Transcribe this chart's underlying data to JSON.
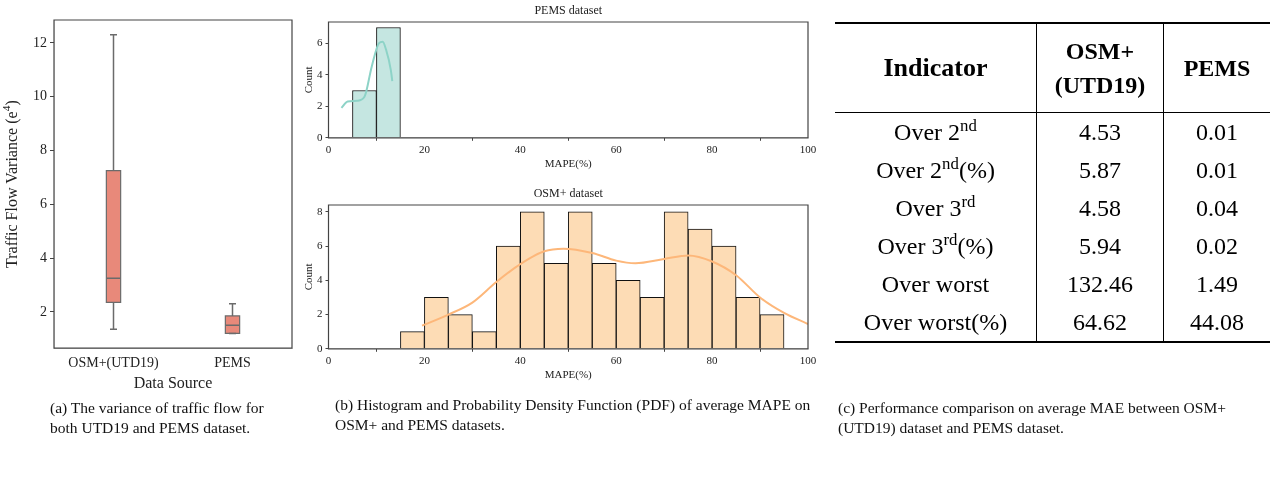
{
  "chart_data": [
    {
      "type": "box",
      "categories": [
        "OSM+(UTD19)",
        "PEMS"
      ],
      "xlabel": "Data Source",
      "ylabel": "Traffic Flow Variance (e$^{4}$)",
      "color": "#e8897a",
      "boxes": [
        {
          "low": 1.35,
          "q1": 2.35,
          "median": 3.25,
          "q3": 7.25,
          "high": 12.3
        },
        {
          "low": 1.2,
          "q1": 1.2,
          "median": 1.5,
          "q3": 1.85,
          "high": 2.3
        }
      ],
      "ylim": [
        0.65,
        12.85
      ],
      "yticks": [
        2,
        4,
        6,
        8,
        10,
        12
      ],
      "grid": false,
      "annotations": [
        "(a) The variance of traffic flow for both UTD19 and PEMS dataset."
      ]
    },
    {
      "type": "histogram",
      "title": "PEMS dataset",
      "xlabel": "MAPE(%)",
      "ylabel": "Count",
      "color": "#c5e6e1",
      "bins": [
        5,
        10,
        15
      ],
      "values": [
        3,
        7
      ],
      "series": [
        {
          "type": "line",
          "color": "#8dd3c7",
          "x": [
            2.7,
            4,
            6,
            7.5,
            9,
            10.5,
            11.3,
            12,
            13,
            13.3
          ],
          "values": [
            1.9,
            2.3,
            2.35,
            2.6,
            4.5,
            6.0,
            6.1,
            5.6,
            4.3,
            3.6
          ]
        }
      ],
      "xlim": [
        0,
        100
      ],
      "xticks": [
        0,
        20,
        40,
        60,
        80,
        100
      ],
      "ylim": [
        0,
        7.35
      ],
      "yticks": [
        0,
        2,
        4,
        6
      ],
      "grid": false
    },
    {
      "type": "histogram",
      "title": "OSM+ dataset",
      "xlabel": "MAPE(%)",
      "ylabel": "Count",
      "color": "#fddcb5",
      "bins": [
        5,
        10,
        15,
        20,
        25,
        30,
        35,
        40,
        45,
        50,
        55,
        60,
        65,
        70,
        75,
        80,
        85,
        90,
        95
      ],
      "values": [
        0,
        0,
        1,
        3,
        2,
        1,
        6,
        8,
        5,
        8,
        5,
        4,
        3,
        8,
        7,
        6,
        3,
        2
      ],
      "series": [
        {
          "type": "line",
          "color": "#fdb77a",
          "x": [
            19.5,
            25,
            30,
            35,
            40,
            45,
            49,
            55,
            60,
            64,
            70,
            75,
            80,
            85,
            90,
            95,
            100
          ],
          "values": [
            1.35,
            2.0,
            2.7,
            3.9,
            4.95,
            5.7,
            5.85,
            5.6,
            5.15,
            5.0,
            5.25,
            5.45,
            5.1,
            4.3,
            3.0,
            2.1,
            1.45
          ]
        }
      ],
      "xlim": [
        0,
        100
      ],
      "xticks": [
        0,
        20,
        40,
        60,
        80,
        100
      ],
      "ylim": [
        0,
        8.4
      ],
      "yticks": [
        0,
        2,
        4,
        6,
        8
      ],
      "grid": false,
      "annotations": [
        "(b) Histogram and Probability Density Function (PDF) of average MAPE on OSM+ and PEMS datasets."
      ]
    },
    {
      "type": "other",
      "ylabel": "Indicator",
      "categories": [
        "Over 2$^{nd}$",
        "Over 2$^{nd}$(%)",
        "Over 3$^{rd}$",
        "Over 3$^{rd}$(%)",
        "Over worst",
        "Over worst(%)"
      ],
      "series": [
        {
          "name": "OSM+(UTD19)",
          "values": [
            4.53,
            5.87,
            4.58,
            5.94,
            132.46,
            64.62
          ]
        },
        {
          "name": "PEMS",
          "values": [
            0.01,
            0.01,
            0.04,
            0.02,
            1.49,
            44.08
          ]
        }
      ],
      "data_labels": true,
      "annotations": [
        "(c) Performance comparison on average MAE between OSM+(UTD19) dataset and PEMS dataset."
      ]
    }
  ]
}
